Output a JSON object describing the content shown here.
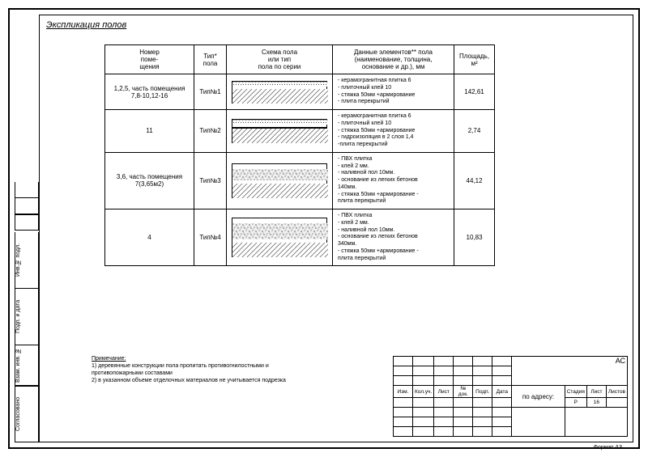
{
  "title": "Экспликация полов",
  "headers": {
    "room": "Номер\nпоме-\nщения",
    "type": "Тип*\nпола",
    "scheme": "Схема пола\nили тип\nпола по серии",
    "data": "Данные элементов** пола\n(наименование, толщина,\nоснование и др.), мм",
    "area": "Площадь,\nм²"
  },
  "rows": [
    {
      "room": "1,2,5, часть помещения\n7,8-10,12-16",
      "type": "Тип№1",
      "layers": [
        {
          "h": 3,
          "pattern": "grid",
          "fg": "#000",
          "bg": "#fff"
        },
        {
          "h": 4,
          "pattern": "dots",
          "fg": "#000",
          "bg": "#fff"
        },
        {
          "h": 3,
          "pattern": "solid",
          "bg": "#fff"
        },
        {
          "h": 18,
          "pattern": "diag",
          "fg": "#555",
          "bg": "#fff"
        }
      ],
      "data": "- керамогранитная плитка 6\n- плиточный клей 10\n- стяжка 50мм +армирование\n- плита перекрытий",
      "area": "142,61"
    },
    {
      "room": "11",
      "type": "Тип№2",
      "layers": [
        {
          "h": 3,
          "pattern": "grid",
          "fg": "#000",
          "bg": "#fff"
        },
        {
          "h": 4,
          "pattern": "dots",
          "fg": "#000",
          "bg": "#fff"
        },
        {
          "h": 3,
          "pattern": "solid",
          "bg": "#fff"
        },
        {
          "h": 2,
          "pattern": "solid",
          "bg": "#000"
        },
        {
          "h": 18,
          "pattern": "diag",
          "fg": "#555",
          "bg": "#fff"
        }
      ],
      "data": "- керамогранитная плитка 6\n- плиточный клей 10\n- стяжка 50мм +армирование\n- гидроизоляция в 2 слоя 1,4\n-плита перекрытий",
      "area": "2,74"
    },
    {
      "room": "3,6, часть помещения\n7(3,65м2)",
      "type": "Тип№3",
      "layers": [
        {
          "h": 2,
          "pattern": "solid",
          "bg": "#fff"
        },
        {
          "h": 2,
          "pattern": "solid",
          "bg": "#fff"
        },
        {
          "h": 3,
          "pattern": "solid",
          "bg": "#fff"
        },
        {
          "h": 14,
          "pattern": "noise",
          "fg": "#000",
          "bg": "#f0f0f0"
        },
        {
          "h": 4,
          "pattern": "solid",
          "bg": "#fff"
        },
        {
          "h": 18,
          "pattern": "diag",
          "fg": "#555",
          "bg": "#fff"
        }
      ],
      "data": "- ПВХ плитка\n- клей 2 мм.\n- наливной пол 10мм.\n- основание из легких бетонов\n140мм.\n- стяжка 50мм +армирование -\nплита перекрытий",
      "area": "44,12"
    },
    {
      "room": "4",
      "type": "Тип№4",
      "layers": [
        {
          "h": 2,
          "pattern": "solid",
          "bg": "#fff"
        },
        {
          "h": 2,
          "pattern": "solid",
          "bg": "#fff"
        },
        {
          "h": 3,
          "pattern": "solid",
          "bg": "#fff"
        },
        {
          "h": 20,
          "pattern": "noise",
          "fg": "#000",
          "bg": "#f0f0f0"
        },
        {
          "h": 4,
          "pattern": "solid",
          "bg": "#fff"
        },
        {
          "h": 18,
          "pattern": "diag",
          "fg": "#555",
          "bg": "#fff"
        }
      ],
      "data": "- ПВХ плитка\n- клей 2 мм.\n- наливной пол 10мм.\n- основание из легких бетонов\n340мм.\n- стяжка 50мм +армирование -\nплита перекрытий",
      "area": "10,83"
    }
  ],
  "notes": {
    "heading": "Примечание:",
    "items": [
      "1) деревянные конструкции пола пропитать противогнилостными и противопожарными составами",
      "2) в указанном объеме отделочных материалов не учитывается подрезка"
    ]
  },
  "stamp": {
    "small_headers": [
      "Изм.",
      "Кол.уч.",
      "Лист",
      "№ док.",
      "Подп.",
      "Дата"
    ],
    "address_label": "по адресу:",
    "series": "АС",
    "stage_h": "Стадия",
    "sheet_h": "Лист",
    "sheets_h": "Листов",
    "stage": "Р",
    "sheet": "16",
    "sheets": ""
  },
  "side_labels": [
    "Согласовано",
    "Взам. инв. №",
    "Подп. и дата",
    "Инв.№ подл."
  ],
  "format": "Формат    А3"
}
